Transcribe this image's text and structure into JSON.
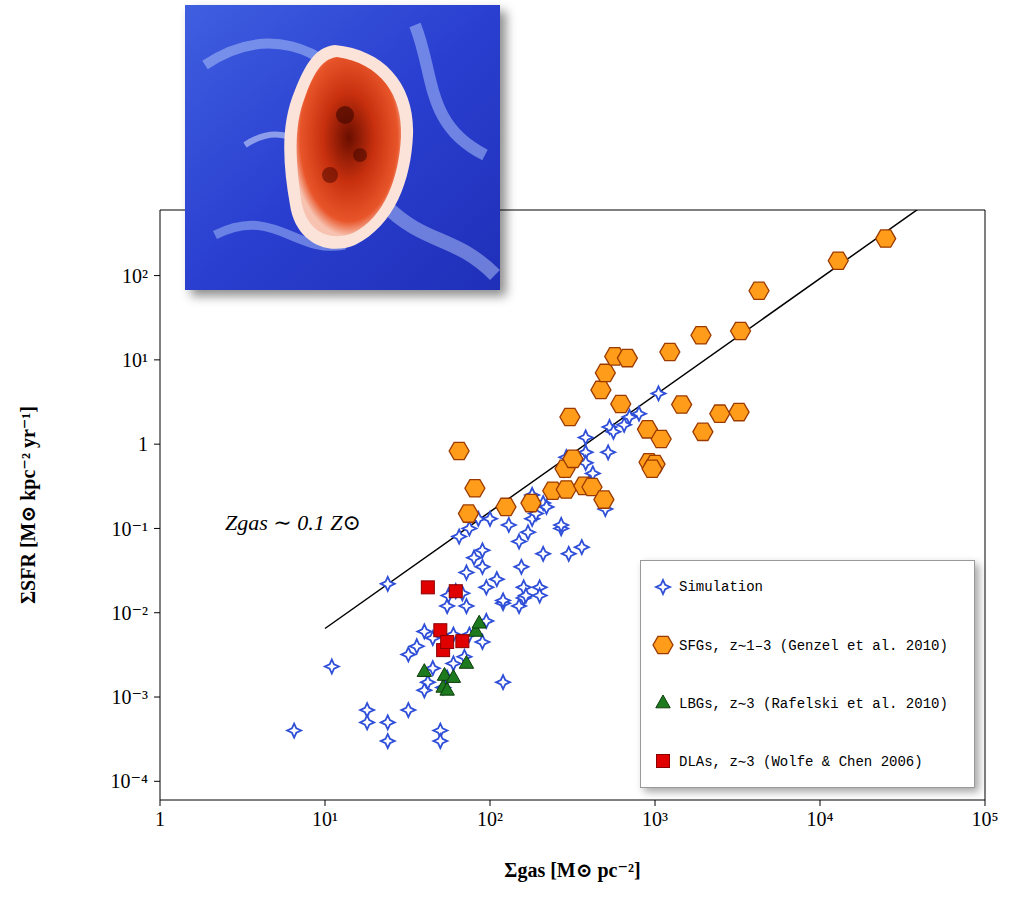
{
  "chart_data": {
    "type": "scatter",
    "log": true,
    "grid": false,
    "legend": "lower right",
    "x_label": "Σgas [M⊙ pc⁻²]",
    "y_label": "ΣSFR [M⊙ kpc⁻² yr⁻¹]",
    "annotation": "Zgas ∼ 0.1 Z⊙",
    "xlim": [
      1,
      100000
    ],
    "ylim": [
      6e-05,
      600
    ],
    "xticks": [
      1,
      {
        "value": 10,
        "label": "10¹"
      },
      {
        "value": 100,
        "label": "10²"
      },
      {
        "value": 1000,
        "label": "10³"
      },
      {
        "value": 10000,
        "label": "10⁴"
      },
      {
        "value": 100000,
        "label": "10⁵"
      }
    ],
    "yticks": [
      {
        "value": 0.0001,
        "label": "10⁻⁴"
      },
      {
        "value": 0.001,
        "label": "10⁻³"
      },
      {
        "value": 0.01,
        "label": "10⁻²"
      },
      {
        "value": 0.1,
        "label": "10⁻¹"
      },
      1,
      {
        "value": 10,
        "label": "10¹"
      },
      {
        "value": 100,
        "label": "10²"
      }
    ],
    "series": [
      {
        "name": "Simulation",
        "color": "#2f4fd8",
        "marker": "star",
        "x": [
          6.5,
          11,
          18,
          18,
          24,
          24,
          24,
          32,
          32,
          36,
          40,
          40,
          42,
          45,
          45,
          50,
          50,
          52,
          55,
          55,
          56,
          60,
          60,
          62,
          65,
          68,
          70,
          72,
          72,
          75,
          75,
          80,
          85,
          90,
          90,
          90,
          95,
          95,
          100,
          110,
          120,
          120,
          120,
          130,
          150,
          150,
          155,
          160,
          160,
          165,
          170,
          180,
          180,
          190,
          200,
          200,
          210,
          210,
          220,
          270,
          270,
          280,
          290,
          300,
          300,
          360,
          380,
          380,
          380,
          400,
          420,
          500,
          520,
          530,
          560,
          650,
          700,
          800,
          1050
        ],
        "y": [
          0.0004,
          0.0023,
          0.0007,
          0.0005,
          0.0005,
          0.0003,
          0.022,
          0.0007,
          0.0032,
          0.004,
          0.006,
          0.0012,
          0.0015,
          0.005,
          0.0022,
          0.0004,
          0.0003,
          0.0013,
          0.0017,
          0.012,
          0.016,
          0.0055,
          0.0025,
          0.018,
          0.08,
          0.017,
          0.003,
          0.03,
          0.012,
          0.0055,
          0.1,
          0.045,
          0.13,
          0.055,
          0.035,
          0.0045,
          0.008,
          0.02,
          0.13,
          0.025,
          0.0015,
          0.013,
          0.014,
          0.11,
          0.07,
          0.012,
          0.035,
          0.015,
          0.02,
          0.016,
          0.09,
          0.25,
          0.13,
          0.15,
          0.02,
          0.016,
          0.05,
          0.2,
          0.18,
          0.1,
          0.11,
          0.5,
          0.7,
          0.6,
          0.05,
          0.06,
          1.2,
          0.8,
          0.6,
          0.35,
          0.45,
          0.17,
          0.8,
          1.6,
          1.4,
          1.7,
          2.1,
          2.3,
          4
        ]
      },
      {
        "name": "SFGs, z∼1–3 (Genzel et al. 2010)",
        "color": "#ff9c1a",
        "marker": "hexagon",
        "x": [
          65,
          81,
          74,
          125,
          177,
          240,
          305,
          285,
          290,
          318,
          370,
          415,
          490,
          470,
          500,
          570,
          680,
          620,
          900,
          920,
          1090,
          1000,
          960,
          1230,
          1900,
          1450,
          1950,
          2470,
          3230,
          3300,
          4270,
          12900,
          25000
        ],
        "y": [
          0.83,
          0.3,
          0.15,
          0.18,
          0.2,
          0.28,
          2.1,
          0.51,
          0.29,
          0.67,
          0.32,
          0.31,
          0.22,
          4.4,
          7,
          11,
          10.5,
          3,
          1.5,
          0.61,
          1.15,
          0.58,
          0.51,
          12.4,
          19.6,
          2.95,
          1.4,
          2.3,
          2.4,
          22,
          66,
          150,
          275
        ]
      },
      {
        "name": "LBGs, z∼3 (Rafelski et al. 2010)",
        "color": "#1e7a1e",
        "marker": "triangle",
        "x": [
          40,
          52,
          53,
          55,
          60,
          72,
          82,
          86
        ],
        "y": [
          0.002,
          0.0013,
          0.0018,
          0.0012,
          0.0017,
          0.0025,
          0.006,
          0.0075
        ]
      },
      {
        "name": "DLAs, z∼3 (Wolfe & Chen 2006)",
        "color": "#e00000",
        "marker": "square",
        "x": [
          42,
          50,
          52,
          55,
          62,
          68
        ],
        "y": [
          0.02,
          0.0062,
          0.0036,
          0.0045,
          0.018,
          0.0046
        ]
      }
    ],
    "fit": {
      "type": "line",
      "color": "#000000",
      "x": [
        10,
        40000
      ],
      "y": [
        0.0065,
        630
      ]
    }
  }
}
